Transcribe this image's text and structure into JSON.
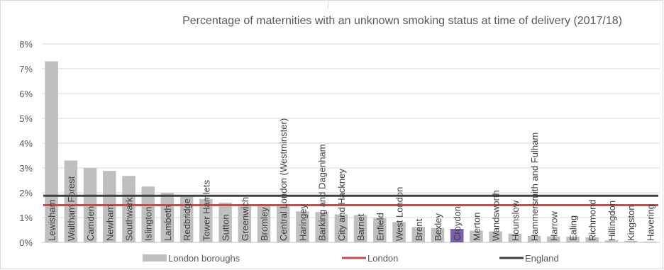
{
  "chart_data": {
    "type": "bar",
    "title": "Percentage of maternities with an unknown smoking status at time of delivery (2017/18)",
    "xlabel": "",
    "ylabel": "",
    "ylim": [
      0,
      8
    ],
    "yticks": [
      "0%",
      "1%",
      "2%",
      "3%",
      "4%",
      "5%",
      "6%",
      "7%",
      "8%"
    ],
    "grid": true,
    "legend_position": "bottom",
    "categories": [
      "Lewisham",
      "Waltham Forest",
      "Camden",
      "Newham",
      "Southwark",
      "Islington",
      "Lambeth",
      "Redbridge",
      "Tower Hamlets",
      "Sutton",
      "Greenwich",
      "Bromley",
      "Central London (Westminster)",
      "Haringey",
      "Barking and Dagenham",
      "City and Hackney",
      "Barnet",
      "Enfield",
      "West London",
      "Brent",
      "Bexley",
      "Croydon",
      "Merton",
      "Wandsworth",
      "Hounslow",
      "Hammersmith and Fulham",
      "Harrow",
      "Ealing",
      "Richmond",
      "Hillingdon",
      "Kingston",
      "Havering"
    ],
    "series": [
      {
        "name": "London boroughs",
        "kind": "bar",
        "color": "#bfbfbf",
        "highlight": {
          "category": "Croydon",
          "color": "#7a5ea8"
        },
        "values": [
          7.3,
          3.3,
          3.0,
          2.88,
          2.68,
          2.25,
          2.0,
          1.87,
          1.75,
          1.6,
          1.53,
          1.5,
          1.5,
          1.25,
          1.22,
          1.13,
          1.1,
          0.98,
          0.82,
          0.62,
          0.58,
          0.54,
          0.47,
          0.44,
          0.35,
          0.26,
          0.24,
          0.23,
          0.2,
          0.08,
          0.06,
          0.03
        ]
      },
      {
        "name": "London",
        "kind": "line",
        "color": "#c0504d",
        "value": 1.5
      },
      {
        "name": "England",
        "kind": "line",
        "color": "#404040",
        "value": 1.88
      }
    ]
  }
}
